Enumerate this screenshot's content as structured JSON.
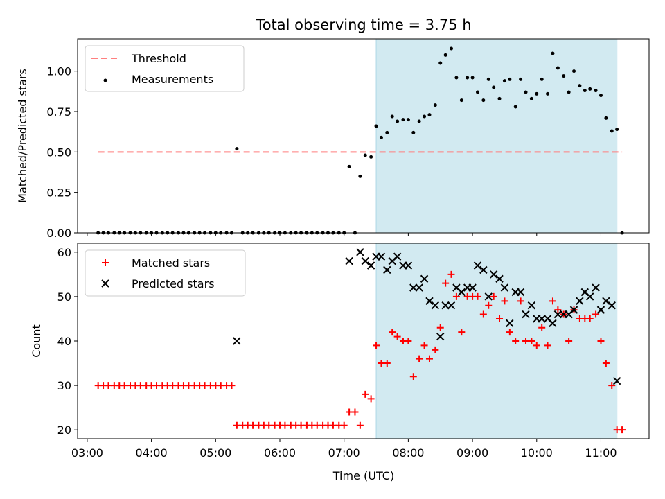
{
  "figure": {
    "title": "Total observing time = 3.75 h",
    "xlabel": "Time (UTC)",
    "x_ticks": [
      "03:00",
      "04:00",
      "05:00",
      "06:00",
      "07:00",
      "08:00",
      "09:00",
      "10:00",
      "11:00"
    ]
  },
  "chart_data": [
    {
      "type": "scatter",
      "panel": "top",
      "ylabel": "Matched/Predicted stars",
      "xlim": [
        2.85,
        11.75
      ],
      "ylim": [
        0,
        1.2
      ],
      "y_ticks": [
        "0.00",
        "0.25",
        "0.50",
        "0.75",
        "1.00"
      ],
      "y_tick_values": [
        0,
        0.25,
        0.5,
        0.75,
        1.0
      ],
      "legend": {
        "placement": "upper-left",
        "entries": [
          "Threshold",
          "Measurements"
        ]
      },
      "shaded_interval": [
        7.5,
        11.25
      ],
      "shade_color": "#add8e6",
      "threshold": {
        "name": "Threshold",
        "y": 0.5,
        "x": [
          3.17,
          11.33
        ],
        "color": "#ff7f7f",
        "style": "dashed"
      },
      "series": [
        {
          "name": "Measurements",
          "color": "#000000",
          "x": [
            3.17,
            3.25,
            3.33,
            3.42,
            3.5,
            3.58,
            3.67,
            3.75,
            3.83,
            3.92,
            4.0,
            4.08,
            4.17,
            4.25,
            4.33,
            4.42,
            4.5,
            4.58,
            4.67,
            4.75,
            4.83,
            4.92,
            5.0,
            5.08,
            5.17,
            5.25,
            5.33,
            5.42,
            5.5,
            5.58,
            5.67,
            5.75,
            5.83,
            5.92,
            6.0,
            6.08,
            6.17,
            6.25,
            6.33,
            6.42,
            6.5,
            6.58,
            6.67,
            6.75,
            6.83,
            6.92,
            7.0,
            7.08,
            7.17,
            7.25,
            7.33,
            7.42,
            7.5,
            7.58,
            7.67,
            7.75,
            7.83,
            7.92,
            8.0,
            8.08,
            8.17,
            8.25,
            8.33,
            8.42,
            8.5,
            8.58,
            8.67,
            8.75,
            8.83,
            8.92,
            9.0,
            9.08,
            9.17,
            9.25,
            9.33,
            9.42,
            9.5,
            9.58,
            9.67,
            9.75,
            9.83,
            9.92,
            10.0,
            10.08,
            10.17,
            10.25,
            10.33,
            10.42,
            10.5,
            10.58,
            10.67,
            10.75,
            10.83,
            10.92,
            11.0,
            11.08,
            11.17,
            11.25,
            11.33
          ],
          "y": [
            0,
            0,
            0,
            0,
            0,
            0,
            0,
            0,
            0,
            0,
            0,
            0,
            0,
            0,
            0,
            0,
            0,
            0,
            0,
            0,
            0,
            0,
            0,
            0,
            0,
            0,
            0.52,
            0,
            0,
            0,
            0,
            0,
            0,
            0,
            0,
            0,
            0,
            0,
            0,
            0,
            0,
            0,
            0,
            0,
            0,
            0,
            0,
            0.41,
            0,
            0.35,
            0.48,
            0.47,
            0.66,
            0.59,
            0.62,
            0.72,
            0.69,
            0.7,
            0.7,
            0.62,
            0.69,
            0.72,
            0.73,
            0.79,
            1.05,
            1.1,
            1.14,
            0.96,
            0.82,
            0.96,
            0.96,
            0.87,
            0.82,
            0.95,
            0.9,
            0.83,
            0.94,
            0.95,
            0.78,
            0.95,
            0.87,
            0.83,
            0.86,
            0.95,
            0.86,
            1.11,
            1.02,
            0.97,
            0.87,
            1.0,
            0.91,
            0.88,
            0.89,
            0.88,
            0.85,
            0.71,
            0.63,
            0.64,
            0
          ]
        }
      ]
    },
    {
      "type": "scatter",
      "panel": "bottom",
      "ylabel": "Count",
      "xlim": [
        2.85,
        11.75
      ],
      "ylim": [
        18,
        62
      ],
      "y_ticks": [
        "20",
        "30",
        "40",
        "50",
        "60"
      ],
      "y_tick_values": [
        20,
        30,
        40,
        50,
        60
      ],
      "legend": {
        "placement": "upper-left",
        "entries": [
          "Matched stars",
          "Predicted stars"
        ]
      },
      "shaded_interval": [
        7.5,
        11.25
      ],
      "shade_color": "#add8e6",
      "series": [
        {
          "name": "Matched stars",
          "marker": "+",
          "color": "#ff0000",
          "x": [
            3.17,
            3.25,
            3.33,
            3.42,
            3.5,
            3.58,
            3.67,
            3.75,
            3.83,
            3.92,
            4.0,
            4.08,
            4.17,
            4.25,
            4.33,
            4.42,
            4.5,
            4.58,
            4.67,
            4.75,
            4.83,
            4.92,
            5.0,
            5.08,
            5.17,
            5.25,
            5.33,
            5.42,
            5.5,
            5.58,
            5.67,
            5.75,
            5.83,
            5.92,
            6.0,
            6.08,
            6.17,
            6.25,
            6.33,
            6.42,
            6.5,
            6.58,
            6.67,
            6.75,
            6.83,
            6.92,
            7.0,
            7.08,
            7.17,
            7.25,
            7.33,
            7.42,
            7.5,
            7.58,
            7.67,
            7.75,
            7.83,
            7.92,
            8.0,
            8.08,
            8.17,
            8.25,
            8.33,
            8.42,
            8.5,
            8.58,
            8.67,
            8.75,
            8.83,
            8.92,
            9.0,
            9.08,
            9.17,
            9.25,
            9.33,
            9.42,
            9.5,
            9.58,
            9.67,
            9.75,
            9.83,
            9.92,
            10.0,
            10.08,
            10.17,
            10.25,
            10.33,
            10.42,
            10.5,
            10.58,
            10.67,
            10.75,
            10.83,
            10.92,
            11.0,
            11.08,
            11.17,
            11.25,
            11.33
          ],
          "y": [
            30,
            30,
            30,
            30,
            30,
            30,
            30,
            30,
            30,
            30,
            30,
            30,
            30,
            30,
            30,
            30,
            30,
            30,
            30,
            30,
            30,
            30,
            30,
            30,
            30,
            30,
            21,
            21,
            21,
            21,
            21,
            21,
            21,
            21,
            21,
            21,
            21,
            21,
            21,
            21,
            21,
            21,
            21,
            21,
            21,
            21,
            21,
            24,
            24,
            21,
            28,
            27,
            39,
            35,
            35,
            42,
            41,
            40,
            40,
            32,
            36,
            39,
            36,
            38,
            43,
            53,
            55,
            50,
            42,
            50,
            50,
            50,
            46,
            48,
            50,
            45,
            49,
            42,
            40,
            49,
            40,
            40,
            39,
            43,
            39,
            49,
            47,
            46,
            40,
            47,
            45,
            45,
            45,
            46,
            40,
            35,
            30,
            20,
            20
          ]
        },
        {
          "name": "Predicted stars",
          "marker": "x",
          "color": "#000000",
          "x": [
            5.33,
            7.08,
            7.25,
            7.33,
            7.42,
            7.5,
            7.58,
            7.67,
            7.75,
            7.83,
            7.92,
            8.0,
            8.08,
            8.17,
            8.25,
            8.33,
            8.42,
            8.5,
            8.58,
            8.67,
            8.75,
            8.83,
            8.92,
            9.0,
            9.08,
            9.17,
            9.25,
            9.33,
            9.42,
            9.5,
            9.58,
            9.67,
            9.75,
            9.83,
            9.92,
            10.0,
            10.08,
            10.17,
            10.25,
            10.33,
            10.42,
            10.5,
            10.58,
            10.67,
            10.75,
            10.83,
            10.92,
            11.0,
            11.08,
            11.17,
            11.25
          ],
          "y": [
            40,
            58,
            60,
            58,
            57,
            59,
            59,
            56,
            58,
            59,
            57,
            57,
            52,
            52,
            54,
            49,
            48,
            41,
            48,
            48,
            52,
            51,
            52,
            52,
            57,
            56,
            50,
            55,
            54,
            52,
            44,
            51,
            51,
            46,
            48,
            45,
            45,
            45,
            44,
            46,
            46,
            46,
            47,
            49,
            51,
            50,
            52,
            47,
            49,
            48,
            31
          ]
        }
      ]
    }
  ]
}
